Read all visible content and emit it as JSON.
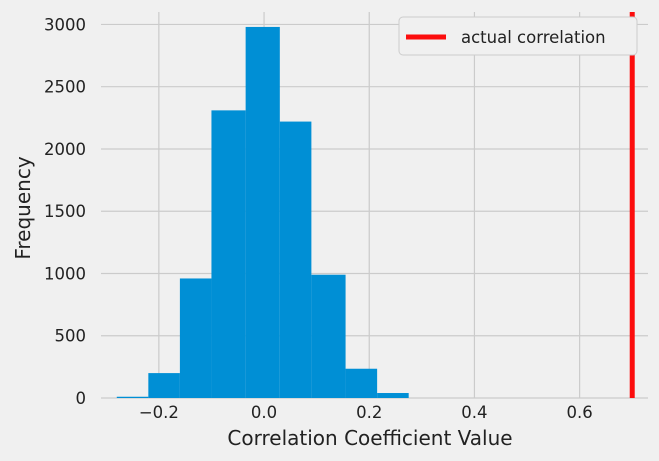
{
  "chart_data": {
    "type": "bar",
    "xlabel": "Correlation Coefficient Value",
    "ylabel": "Frequency",
    "xlim": [
      -0.31,
      0.73
    ],
    "ylim": [
      0,
      3100
    ],
    "xticks": [
      -0.2,
      0.0,
      0.2,
      0.4,
      0.6
    ],
    "xtick_labels": [
      "−0.2",
      "0.0",
      "0.2",
      "0.4",
      "0.6"
    ],
    "yticks": [
      0,
      500,
      1000,
      1500,
      2000,
      2500,
      3000
    ],
    "ytick_labels": [
      "0",
      "500",
      "1000",
      "1500",
      "2000",
      "2500",
      "3000"
    ],
    "grid": true,
    "bar_color": "#008fd5",
    "bins": [
      {
        "start": -0.28,
        "end": -0.22,
        "count": 10
      },
      {
        "start": -0.22,
        "end": -0.16,
        "count": 200
      },
      {
        "start": -0.16,
        "end": -0.1,
        "count": 960
      },
      {
        "start": -0.1,
        "end": -0.035,
        "count": 2310
      },
      {
        "start": -0.035,
        "end": 0.03,
        "count": 2980
      },
      {
        "start": 0.03,
        "end": 0.09,
        "count": 2220
      },
      {
        "start": 0.09,
        "end": 0.155,
        "count": 990
      },
      {
        "start": 0.155,
        "end": 0.215,
        "count": 235
      },
      {
        "start": 0.215,
        "end": 0.275,
        "count": 40
      }
    ],
    "vline": {
      "x": 0.7,
      "color": "#fc0d0d",
      "label": "actual correlation"
    },
    "legend": {
      "position": "top-right",
      "entries": [
        "actual correlation"
      ]
    }
  }
}
